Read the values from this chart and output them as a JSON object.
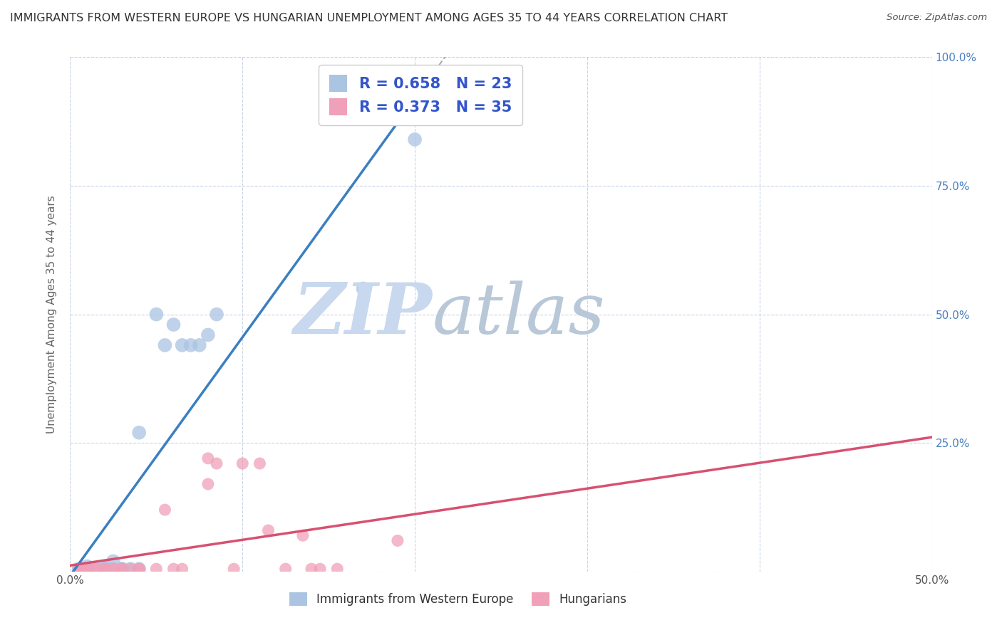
{
  "title": "IMMIGRANTS FROM WESTERN EUROPE VS HUNGARIAN UNEMPLOYMENT AMONG AGES 35 TO 44 YEARS CORRELATION CHART",
  "source": "Source: ZipAtlas.com",
  "ylabel_label": "Unemployment Among Ages 35 to 44 years",
  "xlim": [
    0.0,
    0.5
  ],
  "ylim": [
    0.0,
    1.0
  ],
  "xtick_positions": [
    0.0,
    0.1,
    0.2,
    0.3,
    0.4,
    0.5
  ],
  "xtick_labels": [
    "0.0%",
    "",
    "",
    "",
    "",
    "50.0%"
  ],
  "ytick_positions": [
    0.0,
    0.25,
    0.5,
    0.75,
    1.0
  ],
  "ytick_labels": [
    "",
    "25.0%",
    "50.0%",
    "75.0%",
    "100.0%"
  ],
  "blue_R": 0.658,
  "blue_N": 23,
  "pink_R": 0.373,
  "pink_N": 35,
  "blue_color": "#aac4e2",
  "pink_color": "#f0a0b8",
  "blue_line_color": "#3a7fc1",
  "pink_line_color": "#d85070",
  "legend_text_color": "#3355cc",
  "watermark_zip_color": "#c8d8ee",
  "watermark_atlas_color": "#b8c8d8",
  "blue_scatter_x": [
    0.005,
    0.01,
    0.01,
    0.015,
    0.02,
    0.02,
    0.025,
    0.025,
    0.03,
    0.03,
    0.035,
    0.04,
    0.04,
    0.05,
    0.055,
    0.06,
    0.065,
    0.07,
    0.075,
    0.08,
    0.085,
    0.17,
    0.2
  ],
  "blue_scatter_y": [
    0.005,
    0.005,
    0.01,
    0.005,
    0.005,
    0.01,
    0.005,
    0.02,
    0.005,
    0.005,
    0.005,
    0.27,
    0.005,
    0.5,
    0.44,
    0.48,
    0.44,
    0.44,
    0.44,
    0.46,
    0.5,
    0.55,
    0.84
  ],
  "pink_scatter_x": [
    0.005,
    0.005,
    0.005,
    0.01,
    0.01,
    0.01,
    0.015,
    0.015,
    0.02,
    0.02,
    0.02,
    0.025,
    0.025,
    0.03,
    0.03,
    0.035,
    0.04,
    0.04,
    0.05,
    0.055,
    0.06,
    0.065,
    0.08,
    0.08,
    0.085,
    0.095,
    0.1,
    0.11,
    0.115,
    0.125,
    0.135,
    0.14,
    0.145,
    0.155,
    0.19
  ],
  "pink_scatter_y": [
    0.005,
    0.005,
    0.005,
    0.005,
    0.005,
    0.005,
    0.005,
    0.005,
    0.005,
    0.005,
    0.005,
    0.005,
    0.005,
    0.005,
    0.005,
    0.005,
    0.005,
    0.005,
    0.005,
    0.12,
    0.005,
    0.005,
    0.22,
    0.17,
    0.21,
    0.005,
    0.21,
    0.21,
    0.08,
    0.005,
    0.07,
    0.005,
    0.005,
    0.005,
    0.06
  ],
  "background_color": "#ffffff",
  "grid_color": "#c8d4e8",
  "marker_size_blue": 200,
  "marker_size_pink": 150,
  "marker_aspect_blue": 1.8,
  "marker_aspect_pink": 1.6
}
